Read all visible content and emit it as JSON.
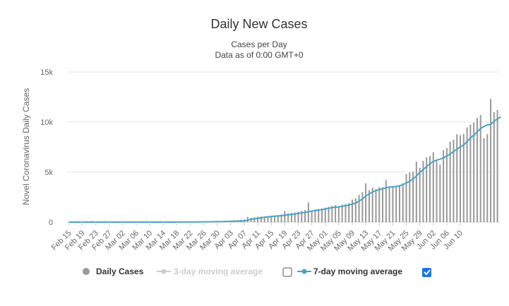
{
  "chart_data": {
    "type": "bar",
    "title": "Daily New Cases",
    "subtitle": "Cases per Day",
    "subtitle2": "Data as of 0:00 GMT+0",
    "ylabel": "Novel Coronavirus Daily Cases",
    "ylim": [
      0,
      15000
    ],
    "yticks": [
      {
        "value": 0,
        "label": "0"
      },
      {
        "value": 5000,
        "label": "5k"
      },
      {
        "value": 10000,
        "label": "10k"
      },
      {
        "value": 15000,
        "label": "15k"
      }
    ],
    "xtick_labels": [
      "Feb 15",
      "Feb 19",
      "Feb 23",
      "Feb 27",
      "Mar 02",
      "Mar 06",
      "Mar 10",
      "Mar 14",
      "Mar 18",
      "Mar 22",
      "Mar 26",
      "Mar 30",
      "Apr 03",
      "Apr 07",
      "Apr 11",
      "Apr 15",
      "Apr 19",
      "Apr 23",
      "Apr 27",
      "May 01",
      "May 05",
      "May 09",
      "May 13",
      "May 17",
      "May 21",
      "May 25",
      "May 29",
      "Jun 02",
      "Jun 06",
      "Jun 10"
    ],
    "xtick_every": 4,
    "start_date": "Feb 15",
    "series": [
      {
        "name": "Daily Cases",
        "type": "bar",
        "color": "#999999",
        "values": [
          0,
          0,
          0,
          0,
          0,
          0,
          0,
          0,
          0,
          0,
          0,
          0,
          0,
          0,
          0,
          0,
          0,
          1,
          0,
          0,
          1,
          0,
          1,
          1,
          0,
          1,
          2,
          1,
          3,
          5,
          6,
          8,
          10,
          12,
          15,
          18,
          20,
          25,
          30,
          35,
          40,
          50,
          60,
          70,
          80,
          90,
          100,
          120,
          150,
          180,
          200,
          230,
          260,
          520,
          420,
          470,
          540,
          560,
          590,
          610,
          640,
          660,
          700,
          760,
          1100,
          890,
          920,
          960,
          1050,
          1140,
          1200,
          1950,
          1150,
          1250,
          1310,
          1370,
          1440,
          1520,
          1620,
          1700,
          1600,
          1740,
          1800,
          1900,
          2250,
          2370,
          2700,
          2990,
          3870,
          3200,
          3430,
          3290,
          3480,
          3490,
          4200,
          3500,
          3580,
          3600,
          3700,
          3870,
          4790,
          4960,
          5050,
          6020,
          5440,
          6120,
          6460,
          6590,
          6970,
          6120,
          5750,
          7200,
          7400,
          8020,
          8220,
          8780,
          8680,
          8820,
          9450,
          9720,
          9930,
          10400,
          10700,
          8380,
          8780,
          12300,
          11000,
          11200
        ]
      },
      {
        "name": "3-day moving average",
        "type": "line",
        "color": "#cccccc",
        "checked": false,
        "values": []
      },
      {
        "name": "7-day moving average",
        "type": "line",
        "color": "#4aa3c4",
        "checked": true,
        "values": [
          0,
          0,
          0,
          0,
          0,
          0,
          0,
          0,
          0,
          0,
          0,
          0,
          0,
          0,
          0,
          0,
          0,
          0,
          0,
          0,
          0,
          0,
          1,
          1,
          1,
          1,
          1,
          1,
          1,
          2,
          3,
          3,
          4,
          5,
          6,
          8,
          10,
          12,
          14,
          17,
          20,
          24,
          28,
          33,
          40,
          48,
          56,
          65,
          76,
          88,
          100,
          115,
          130,
          180,
          300,
          320,
          380,
          430,
          480,
          520,
          560,
          590,
          610,
          640,
          690,
          730,
          760,
          800,
          860,
          920,
          960,
          1050,
          1100,
          1160,
          1200,
          1240,
          1310,
          1380,
          1450,
          1480,
          1520,
          1580,
          1640,
          1700,
          1800,
          1900,
          2100,
          2300,
          2620,
          2800,
          3000,
          3150,
          3250,
          3320,
          3430,
          3500,
          3520,
          3560,
          3620,
          3750,
          3900,
          4080,
          4300,
          4600,
          4950,
          5250,
          5550,
          5820,
          6050,
          6200,
          6280,
          6420,
          6600,
          6800,
          7050,
          7280,
          7520,
          7700,
          8050,
          8400,
          8700,
          9000,
          9350,
          9550,
          9700,
          9750,
          10100,
          10300,
          10500
        ]
      }
    ],
    "legend": [
      {
        "label": "Daily Cases",
        "type": "bar",
        "color": "#999999",
        "active": true
      },
      {
        "label": "3-day moving average",
        "type": "line",
        "color": "#cccccc",
        "active": false,
        "checkbox": false
      },
      {
        "label": "7-day moving average",
        "type": "line",
        "color": "#4aa3c4",
        "active": true,
        "checkbox": true
      }
    ]
  }
}
